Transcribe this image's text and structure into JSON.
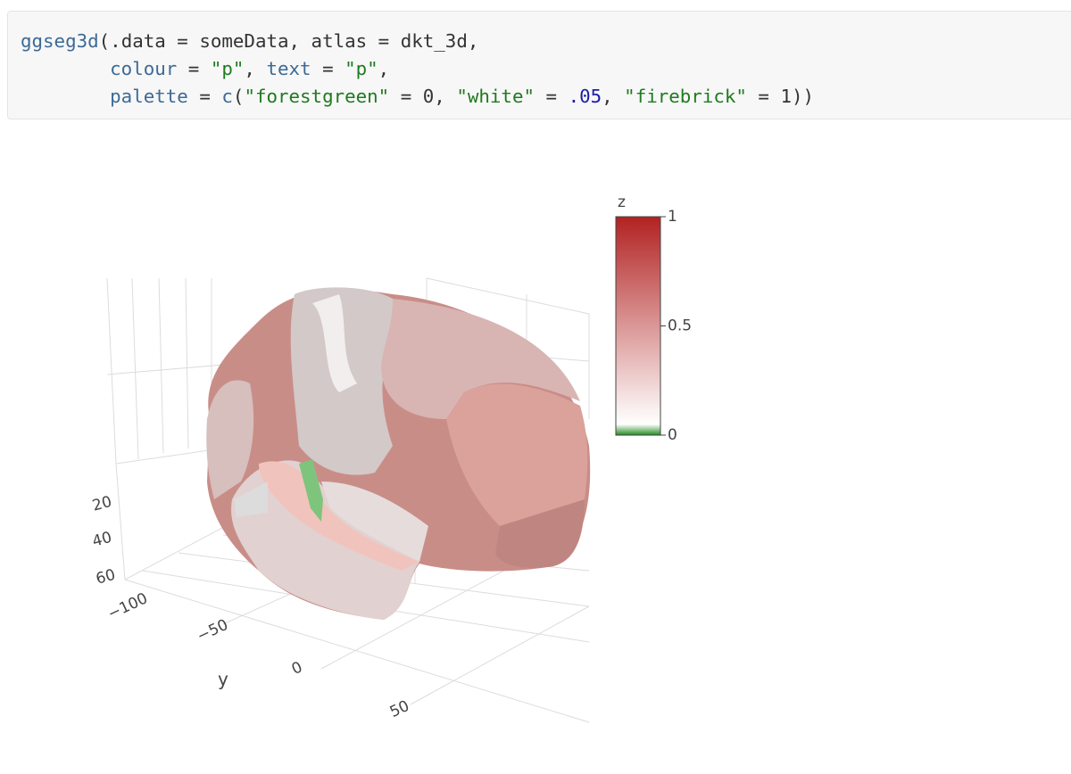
{
  "code": {
    "lines": [
      [
        {
          "text": "ggseg3d",
          "color": "#3d6a96"
        },
        {
          "text": "(.data = someData, atlas = dkt_3d,",
          "color": "#333333"
        }
      ],
      [
        {
          "text": "colour",
          "color": "#3d6a96"
        },
        {
          "text": " = ",
          "color": "#333333"
        },
        {
          "text": "\"p\"",
          "color": "#1f7a1f"
        },
        {
          "text": ", ",
          "color": "#333333"
        },
        {
          "text": "text",
          "color": "#3d6a96"
        },
        {
          "text": " = ",
          "color": "#333333"
        },
        {
          "text": "\"p\"",
          "color": "#1f7a1f"
        },
        {
          "text": ",",
          "color": "#333333"
        }
      ],
      [
        {
          "text": "palette",
          "color": "#3d6a96"
        },
        {
          "text": " = ",
          "color": "#333333"
        },
        {
          "text": "c",
          "color": "#3d6a96"
        },
        {
          "text": "(",
          "color": "#333333"
        },
        {
          "text": "\"forestgreen\"",
          "color": "#1f7a1f"
        },
        {
          "text": " = 0, ",
          "color": "#333333"
        },
        {
          "text": "\"white\"",
          "color": "#1f7a1f"
        },
        {
          "text": " = ",
          "color": "#333333"
        },
        {
          "text": ".05",
          "color": "#1c1ca8"
        },
        {
          "text": ", ",
          "color": "#333333"
        },
        {
          "text": "\"firebrick\"",
          "color": "#1f7a1f"
        },
        {
          "text": " = 1))",
          "color": "#333333"
        }
      ]
    ]
  },
  "plot": {
    "colorbar": {
      "title": "z",
      "lim": [
        0,
        1
      ],
      "ticks": [
        0,
        0.5,
        1
      ],
      "stops": [
        {
          "value": 0,
          "color": "#228b22"
        },
        {
          "value": 0.05,
          "color": "#ffffff"
        },
        {
          "value": 1,
          "color": "#b22222"
        }
      ]
    },
    "z_axis_ticks": [
      20,
      40,
      60
    ],
    "y_axis": {
      "title": "y",
      "ticks": [
        {
          "value": -100,
          "label": "−100"
        },
        {
          "value": -50,
          "label": "−50"
        },
        0,
        50
      ]
    }
  }
}
